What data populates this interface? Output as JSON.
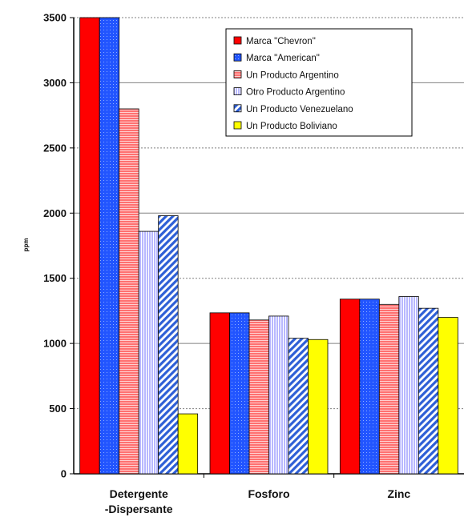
{
  "chart_data": {
    "type": "bar",
    "title": "",
    "xlabel": "",
    "ylabel": "ppm",
    "ylim": [
      0,
      3500
    ],
    "yticks": [
      0,
      500,
      1000,
      1500,
      2000,
      2500,
      3000,
      3500
    ],
    "grid": true,
    "legend_position": "top-right",
    "categories": [
      [
        "Detergente",
        "-Dispersante"
      ],
      [
        "Fosforo"
      ],
      [
        "Zinc"
      ]
    ],
    "series": [
      {
        "name": "Marca \"Chevron\"",
        "color": "#ff0000",
        "pattern": "solid",
        "values": [
          3500,
          1235,
          1340
        ]
      },
      {
        "name": "Marca \"American\"",
        "color": "#2255ff",
        "pattern": "dots",
        "values": [
          3500,
          1235,
          1340
        ]
      },
      {
        "name": "Un Producto Argentino",
        "color": "#ff8080",
        "pattern": "hlines",
        "values": [
          2800,
          1180,
          1300
        ]
      },
      {
        "name": "Otro Producto Argentino",
        "color": "#c0c0ff",
        "pattern": "vlines",
        "values": [
          1860,
          1210,
          1360
        ]
      },
      {
        "name": "Un Producto Venezuelano",
        "color": "#3a6fe0",
        "pattern": "diag",
        "values": [
          1980,
          1040,
          1270
        ]
      },
      {
        "name": "Un Producto Boliviano",
        "color": "#ffff00",
        "pattern": "solid",
        "values": [
          460,
          1030,
          1200
        ]
      }
    ]
  }
}
